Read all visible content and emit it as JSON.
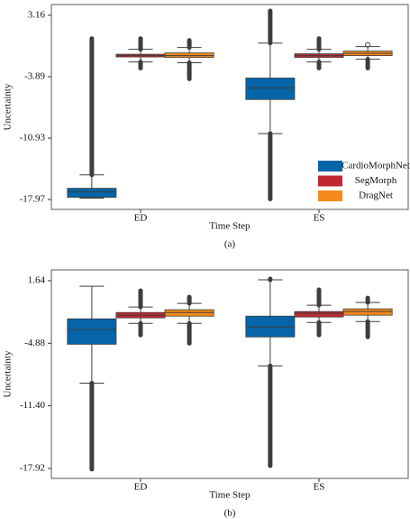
{
  "chart_data": [
    {
      "type": "box",
      "caption": "(a)",
      "xlabel": "Time Step",
      "ylabel": "Uncertainty",
      "categories": [
        "ED",
        "ES"
      ],
      "ylim": [
        -19.1,
        4.39
      ],
      "yticks": [
        3.16,
        -3.89,
        -10.93,
        -17.97
      ],
      "legend": "lower right",
      "series": [
        {
          "name": "CardioMorphNet",
          "color": "#0565a8",
          "boxes": [
            {
              "whislo": -17.81,
              "q1": -17.71,
              "med": -17.1,
              "q3": -16.68,
              "whishi": -15.14,
              "fliers_low": null,
              "fliers_high": [
                -15.14,
                0.49
              ]
            },
            {
              "whislo": -10.41,
              "q1": -6.5,
              "med": -5.17,
              "q3": -4.04,
              "whishi": -0.03,
              "fliers_low": [
                -17.91,
                -10.41
              ],
              "fliers_high": [
                -0.03,
                3.67
              ]
            }
          ]
        },
        {
          "name": "SegMorph",
          "color": "#c0282f",
          "boxes": [
            {
              "whislo": -2.19,
              "q1": -1.62,
              "med": -1.47,
              "q3": -1.31,
              "whishi": -0.75,
              "fliers_low": [
                -2.9,
                -2.19
              ],
              "fliers_high": [
                -0.75,
                0.49
              ]
            },
            {
              "whislo": -2.19,
              "q1": -1.67,
              "med": -1.47,
              "q3": -1.26,
              "whishi": -0.75,
              "fliers_low": [
                -2.9,
                -2.19
              ],
              "fliers_high": [
                -0.75,
                0.49
              ]
            }
          ]
        },
        {
          "name": "DragNet",
          "color": "#f48a1c",
          "boxes": [
            {
              "whislo": -2.29,
              "q1": -1.67,
              "med": -1.47,
              "q3": -1.16,
              "whishi": -0.54,
              "fliers_low": [
                -4.14,
                -2.29
              ],
              "fliers_high": [
                -0.54,
                0.28
              ]
            },
            {
              "whislo": -1.88,
              "q1": -1.47,
              "med": -1.2,
              "q3": -0.95,
              "whishi": -0.44,
              "fliers_low": [
                -2.9,
                -1.88
              ],
              "fliers_high": [
                -0.23,
                -0.23
              ]
            }
          ]
        }
      ]
    },
    {
      "type": "box",
      "caption": "(b)",
      "xlabel": "Time Step",
      "ylabel": "Uncertainty",
      "categories": [
        "ED",
        "ES"
      ],
      "ylim": [
        -18.96,
        2.77
      ],
      "yticks": [
        1.64,
        {
          "value": -4.88,
          "label": "-4.88"
        },
        {
          "value": -11.4,
          "label": "-11.40"
        },
        -17.92
      ],
      "legend": null,
      "series": [
        {
          "color": "#0565a8",
          "boxes": [
            {
              "whislo": -9.04,
              "q1": -4.98,
              "med": -3.46,
              "q3": -2.33,
              "whishi": 1.07,
              "fliers_low": [
                -18.0,
                -9.04
              ],
              "fliers_high": null
            },
            {
              "whislo": -7.24,
              "q1": -4.22,
              "med": -3.18,
              "q3": -2.05,
              "whishi": 1.73,
              "fliers_low": [
                -17.64,
                -7.24
              ],
              "fliers_high": [
                1.73,
                1.83
              ]
            }
          ]
        },
        {
          "color": "#c0282f",
          "boxes": [
            {
              "whislo": -2.8,
              "q1": -2.23,
              "med": -1.95,
              "q3": -1.67,
              "whishi": -1.1,
              "fliers_low": [
                -4.03,
                -2.8
              ],
              "fliers_high": [
                -1.1,
                0.6
              ]
            },
            {
              "whislo": -2.71,
              "q1": -2.14,
              "med": -1.76,
              "q3": -1.57,
              "whishi": -0.91,
              "fliers_low": [
                -4.03,
                -2.71
              ],
              "fliers_high": [
                -0.91,
                0.7
              ]
            }
          ]
        },
        {
          "color": "#f48a1c",
          "boxes": [
            {
              "whislo": -2.8,
              "q1": -2.05,
              "med": -1.67,
              "q3": -1.38,
              "whishi": -0.72,
              "fliers_low": [
                -4.88,
                -2.8
              ],
              "fliers_high": [
                -0.72,
                -0.06
              ]
            },
            {
              "whislo": -2.61,
              "q1": -1.95,
              "med": -1.57,
              "q3": -1.29,
              "whishi": -0.63,
              "fliers_low": [
                -4.22,
                -2.61
              ],
              "fliers_high": [
                -0.63,
                -0.16
              ]
            }
          ]
        }
      ]
    }
  ]
}
